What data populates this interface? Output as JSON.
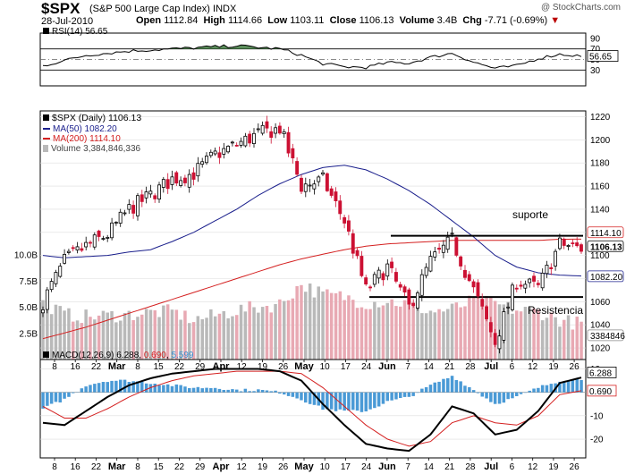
{
  "header": {
    "symbol": "$SPX",
    "name": "(S&P 500 Large Cap Index)",
    "exchange": "INDX",
    "date": "28-Jul-2010",
    "open_label": "Open",
    "open": "1112.84",
    "high_label": "High",
    "high": "1114.66",
    "low_label": "Low",
    "low": "1103.11",
    "close_label": "Close",
    "close": "1106.13",
    "volume_label": "Volume",
    "volume": "3.4B",
    "chg_label": "Chg",
    "chg": "-7.71 (-0.69%)",
    "credit": "@ StockCharts.com"
  },
  "rsi_panel": {
    "legend": "RSI(14) 56.65",
    "value_tag": "56.65",
    "ticks": [
      90,
      70,
      50,
      30
    ]
  },
  "price_panel": {
    "legend_main": "$SPX (Daily) 1106.13",
    "legend_ma50": "MA(50) 1082.20",
    "legend_ma200": "MA(200) 1114.10",
    "legend_volume": "Volume 3,384,846,336",
    "tag_ma200": "1114.10",
    "tag_close": "1106.13",
    "tag_ma50": "1082.20",
    "tag_volume": "3384846",
    "annotation_top": "suporte",
    "annotation_bottom": "Resistencia",
    "price_ticks": [
      1220,
      1200,
      1180,
      1160,
      1140,
      1120,
      1100,
      1080,
      1060,
      1040,
      1020
    ],
    "volume_ticks": [
      "10.0B",
      "7.5B",
      "5.0B",
      "2.5B"
    ]
  },
  "macd_panel": {
    "legend_label": "MACD(12,26,9)",
    "v1": "6.288",
    "v2": "0.690",
    "v3": "5.599",
    "tag1": "6.288",
    "tag2": "0.690",
    "ticks": [
      10,
      0,
      -10,
      -20
    ]
  },
  "x_axis": {
    "labels": [
      {
        "t": "8",
        "bold": false
      },
      {
        "t": "16",
        "bold": false
      },
      {
        "t": "22",
        "bold": false
      },
      {
        "t": "Mar",
        "bold": true
      },
      {
        "t": "8",
        "bold": false
      },
      {
        "t": "15",
        "bold": false
      },
      {
        "t": "22",
        "bold": false
      },
      {
        "t": "29",
        "bold": false
      },
      {
        "t": "Apr",
        "bold": true
      },
      {
        "t": "12",
        "bold": false
      },
      {
        "t": "19",
        "bold": false
      },
      {
        "t": "26",
        "bold": false
      },
      {
        "t": "May",
        "bold": true
      },
      {
        "t": "10",
        "bold": false
      },
      {
        "t": "17",
        "bold": false
      },
      {
        "t": "24",
        "bold": false
      },
      {
        "t": "Jun",
        "bold": true
      },
      {
        "t": "7",
        "bold": false
      },
      {
        "t": "14",
        "bold": false
      },
      {
        "t": "21",
        "bold": false
      },
      {
        "t": "28",
        "bold": false
      },
      {
        "t": "Jul",
        "bold": true
      },
      {
        "t": "6",
        "bold": false
      },
      {
        "t": "12",
        "bold": false
      },
      {
        "t": "19",
        "bold": false
      },
      {
        "t": "26",
        "bold": false
      }
    ]
  },
  "colors": {
    "up": "#000000",
    "down": "#cc1133",
    "ma50": "#1a1f8c",
    "ma200": "#d42020",
    "vol_up": "#b9b9b9",
    "vol_down": "#e8a9b3",
    "macd_hist": "#4a9ad6",
    "rsi_fill": "#3f7a3f",
    "grid": "#dddddd"
  },
  "chart_data": [
    {
      "type": "line",
      "title": "RSI(14)",
      "ylim": [
        0,
        100
      ],
      "reference_lines": [
        70,
        50,
        30
      ],
      "x": [
        "Feb 8",
        "Feb 16",
        "Feb 22",
        "Mar 1",
        "Mar 8",
        "Mar 15",
        "Mar 22",
        "Mar 29",
        "Apr 5",
        "Apr 12",
        "Apr 19",
        "Apr 26",
        "May 3",
        "May 10",
        "May 17",
        "May 24",
        "Jun 1",
        "Jun 7",
        "Jun 14",
        "Jun 21",
        "Jun 28",
        "Jul 6",
        "Jul 12",
        "Jul 19",
        "Jul 26",
        "Jul 28"
      ],
      "series": [
        {
          "name": "RSI(14)",
          "values": [
            38,
            48,
            58,
            62,
            66,
            68,
            70,
            72,
            74,
            76,
            73,
            70,
            58,
            42,
            36,
            35,
            44,
            43,
            54,
            62,
            45,
            33,
            38,
            52,
            60,
            56.65
          ]
        }
      ]
    },
    {
      "type": "line",
      "title": "$SPX (Daily)",
      "ylim": [
        1010,
        1225
      ],
      "x": [
        "Feb 8",
        "Feb 16",
        "Feb 22",
        "Mar 1",
        "Mar 8",
        "Mar 15",
        "Mar 22",
        "Mar 29",
        "Apr 5",
        "Apr 12",
        "Apr 19",
        "Apr 26",
        "May 3",
        "May 10",
        "May 17",
        "May 24",
        "Jun 1",
        "Jun 7",
        "Jun 14",
        "Jun 21",
        "Jun 28",
        "Jul 6",
        "Jul 12",
        "Jul 19",
        "Jul 26",
        "Jul 28"
      ],
      "series": [
        {
          "name": "$SPX",
          "values": [
            1060,
            1095,
            1108,
            1118,
            1140,
            1152,
            1166,
            1171,
            1187,
            1196,
            1205,
            1210,
            1160,
            1165,
            1130,
            1070,
            1090,
            1055,
            1095,
            1113,
            1070,
            1025,
            1078,
            1072,
            1110,
            1106.13
          ]
        },
        {
          "name": "MA(50)",
          "values": [
            1100,
            1098,
            1099,
            1100,
            1103,
            1105,
            1112,
            1120,
            1130,
            1140,
            1152,
            1162,
            1170,
            1176,
            1178,
            1174,
            1166,
            1156,
            1144,
            1130,
            1116,
            1100,
            1090,
            1085,
            1083,
            1082.2
          ]
        },
        {
          "name": "MA(200)",
          "values": [
            1028,
            1033,
            1038,
            1044,
            1050,
            1056,
            1062,
            1068,
            1074,
            1080,
            1086,
            1092,
            1097,
            1101,
            1105,
            1108,
            1110,
            1111,
            1112,
            1113,
            1113,
            1113,
            1113,
            1113,
            1114,
            1114.1
          ]
        }
      ],
      "reference_lines": [
        1117,
        1064
      ]
    },
    {
      "type": "bar",
      "title": "Volume",
      "ylim": [
        0,
        10000000000
      ],
      "x": [
        "Feb 8",
        "Feb 16",
        "Feb 22",
        "Mar 1",
        "Mar 8",
        "Mar 15",
        "Mar 22",
        "Mar 29",
        "Apr 5",
        "Apr 12",
        "Apr 19",
        "Apr 26",
        "May 3",
        "May 10",
        "May 17",
        "May 24",
        "Jun 1",
        "Jun 7",
        "Jun 14",
        "Jun 21",
        "Jun 28",
        "Jul 6",
        "Jul 12",
        "Jul 19",
        "Jul 26",
        "Jul 28"
      ],
      "values": [
        5500000000,
        4300000000,
        4100000000,
        4200000000,
        4300000000,
        4500000000,
        4600000000,
        3800000000,
        4200000000,
        4700000000,
        5000000000,
        5300000000,
        7200000000,
        6200000000,
        6000000000,
        5400000000,
        5600000000,
        5300000000,
        4600000000,
        4800000000,
        5600000000,
        5300000000,
        4700000000,
        4600000000,
        3800000000,
        3384846336
      ]
    },
    {
      "type": "line",
      "title": "MACD(12,26,9)",
      "ylim": [
        -28,
        14
      ],
      "x": [
        "Feb 8",
        "Feb 16",
        "Feb 22",
        "Mar 1",
        "Mar 8",
        "Mar 15",
        "Mar 22",
        "Mar 29",
        "Apr 5",
        "Apr 12",
        "Apr 19",
        "Apr 26",
        "May 3",
        "May 10",
        "May 17",
        "May 24",
        "Jun 1",
        "Jun 7",
        "Jun 14",
        "Jun 21",
        "Jun 28",
        "Jul 6",
        "Jul 12",
        "Jul 19",
        "Jul 26",
        "Jul 28"
      ],
      "series": [
        {
          "name": "MACD",
          "values": [
            -13,
            -14,
            -8,
            -2,
            3,
            6,
            8,
            9,
            10,
            10,
            10,
            9,
            5,
            -5,
            -14,
            -22,
            -24,
            -25,
            -18,
            -6,
            -9,
            -18,
            -16,
            -8,
            4,
            6.288
          ]
        },
        {
          "name": "Signal",
          "values": [
            -6,
            -11,
            -11,
            -7,
            -2,
            2,
            5,
            7,
            8,
            9,
            9,
            9,
            8,
            2,
            -6,
            -14,
            -20,
            -23,
            -21,
            -13,
            -10,
            -13,
            -14,
            -10,
            -1,
            0.69
          ]
        },
        {
          "name": "Histogram",
          "values": [
            -7,
            -3,
            3,
            5,
            5,
            4,
            3,
            2,
            2,
            1,
            1,
            0,
            -3,
            -7,
            -8,
            -8,
            -4,
            -2,
            3,
            7,
            1,
            -5,
            -2,
            2,
            5,
            5.599
          ]
        }
      ]
    }
  ]
}
